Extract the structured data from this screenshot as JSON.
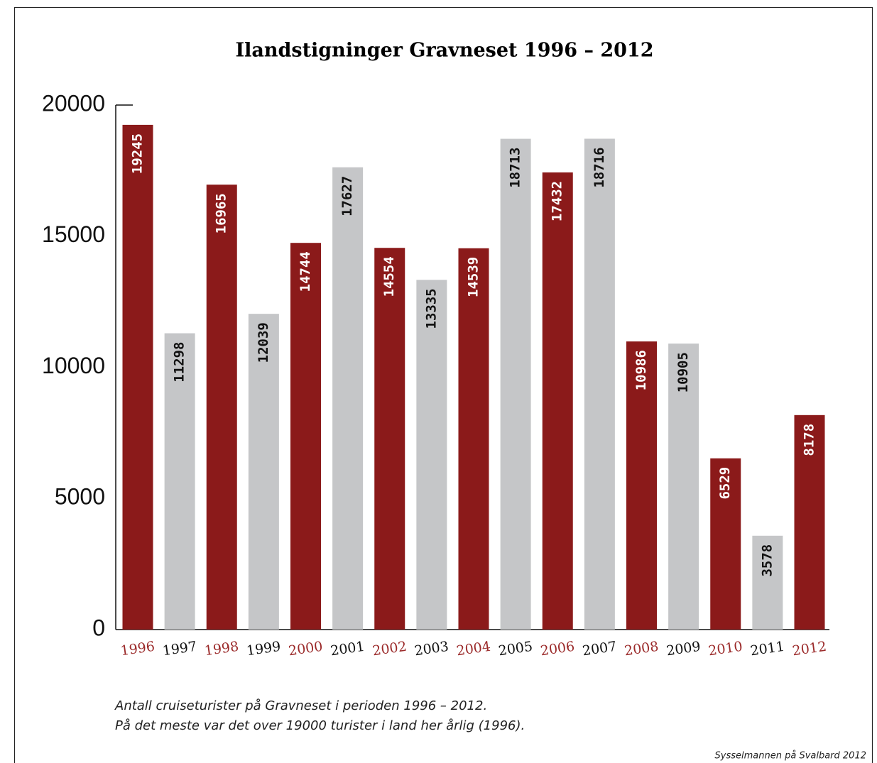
{
  "chart_data": {
    "type": "bar",
    "title": "Ilandstigninger Gravneset 1996 – 2012",
    "categories": [
      "1996",
      "1997",
      "1998",
      "1999",
      "2000",
      "2001",
      "2002",
      "2003",
      "2004",
      "2005",
      "2006",
      "2007",
      "2008",
      "2009",
      "2010",
      "2011",
      "2012"
    ],
    "values": [
      19245,
      11298,
      16965,
      12039,
      14744,
      17627,
      14554,
      13335,
      14539,
      18713,
      17432,
      18716,
      10986,
      10905,
      6529,
      3578,
      8178
    ],
    "colors": [
      "#8b1a1a",
      "#c5c6c8",
      "#8b1a1a",
      "#c5c6c8",
      "#8b1a1a",
      "#c5c6c8",
      "#8b1a1a",
      "#c5c6c8",
      "#8b1a1a",
      "#c5c6c8",
      "#8b1a1a",
      "#c5c6c8",
      "#8b1a1a",
      "#c5c6c8",
      "#8b1a1a",
      "#c5c6c8",
      "#8b1a1a"
    ],
    "value_label_colors": [
      "#ffffff",
      "#111111",
      "#ffffff",
      "#111111",
      "#ffffff",
      "#111111",
      "#ffffff",
      "#111111",
      "#ffffff",
      "#111111",
      "#ffffff",
      "#111111",
      "#ffffff",
      "#111111",
      "#ffffff",
      "#111111",
      "#ffffff"
    ],
    "tick_label_colors": [
      "#9b2a2a",
      "#111111",
      "#9b2a2a",
      "#111111",
      "#9b2a2a",
      "#111111",
      "#9b2a2a",
      "#111111",
      "#9b2a2a",
      "#111111",
      "#9b2a2a",
      "#111111",
      "#9b2a2a",
      "#111111",
      "#9b2a2a",
      "#111111",
      "#9b2a2a"
    ],
    "ylim": [
      0,
      20000
    ],
    "yticks": [
      0,
      5000,
      10000,
      15000,
      20000
    ],
    "grid": false,
    "notes": [
      "Antall cruiseturister på Gravneset i perioden 1996 – 2012.",
      "På det meste var det over 19000 turister i land her årlig (1996)."
    ],
    "source": "Sysselmannen på Svalbard 2012"
  }
}
